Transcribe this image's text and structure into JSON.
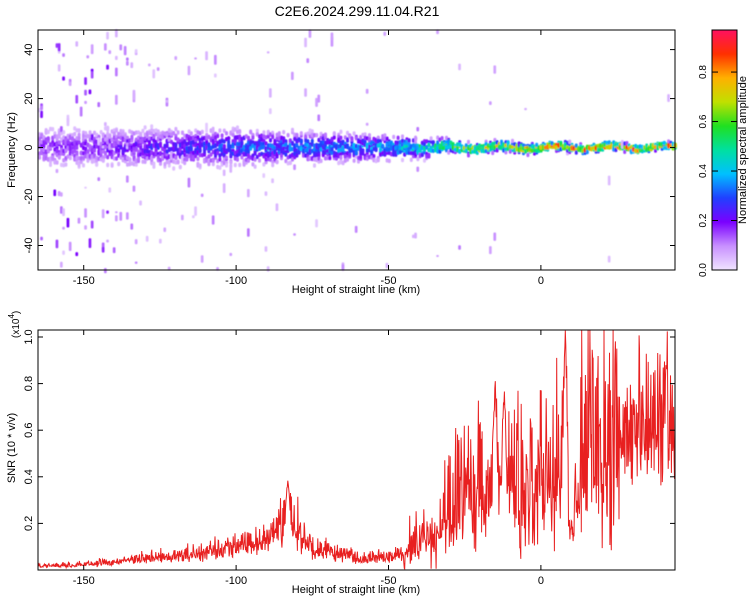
{
  "title": "C2E6.2024.299.11.04.R21",
  "chart_data": [
    {
      "type": "heatmap",
      "xlabel": "Height of straight line (km)",
      "ylabel": "Frequency (Hz)",
      "xlim": [
        -165,
        44
      ],
      "ylim": [
        -50,
        48
      ],
      "xticks": [
        -150,
        -100,
        -50,
        0
      ],
      "yticks": [
        -40,
        -20,
        0,
        20,
        40
      ],
      "colorbar": {
        "label": "Normalized spectral amplitude",
        "ticks": [
          "0.0",
          "0.2",
          "0.4",
          "0.6",
          "0.8"
        ],
        "range": [
          0,
          0.97
        ]
      },
      "energy_band": {
        "center_hz": 0,
        "half_width_hz": [
          {
            "x": -150,
            "hz": 10
          },
          {
            "x": -100,
            "hz": 9
          },
          {
            "x": -50,
            "hz": 6
          },
          {
            "x": -30,
            "hz": 3
          },
          {
            "x": 0,
            "hz": 2
          },
          {
            "x": 40,
            "hz": 1.5
          }
        ],
        "peak_amplitude": [
          {
            "x": -150,
            "v": 0.2
          },
          {
            "x": -100,
            "v": 0.35
          },
          {
            "x": -50,
            "v": 0.45
          },
          {
            "x": -30,
            "v": 0.7
          },
          {
            "x": 0,
            "v": 0.9
          },
          {
            "x": 40,
            "v": 0.95
          }
        ]
      }
    },
    {
      "type": "line",
      "xlabel": "Height of straight line (km)",
      "ylabel": "SNR (10 * v/v)",
      "multiplier_label": "(x10",
      "multiplier_exp": "4",
      "xlim": [
        -165,
        44
      ],
      "ylim": [
        0,
        1.03
      ],
      "xticks": [
        -150,
        -100,
        -50,
        0
      ],
      "yticks": [
        0.2,
        0.4,
        0.6,
        0.8,
        1.0
      ],
      "ytick_labels": [
        "0.2",
        "0.4",
        "0.6",
        "0.8",
        "1.0"
      ],
      "color": "#e82020",
      "envelope": [
        {
          "x": -165,
          "y": 0.02
        },
        {
          "x": -150,
          "y": 0.03
        },
        {
          "x": -130,
          "y": 0.06
        },
        {
          "x": -110,
          "y": 0.09
        },
        {
          "x": -90,
          "y": 0.16
        },
        {
          "x": -83,
          "y": 0.28
        },
        {
          "x": -75,
          "y": 0.12
        },
        {
          "x": -60,
          "y": 0.06
        },
        {
          "x": -45,
          "y": 0.08
        },
        {
          "x": -35,
          "y": 0.22
        },
        {
          "x": -25,
          "y": 0.38
        },
        {
          "x": -15,
          "y": 0.42
        },
        {
          "x": -5,
          "y": 0.45
        },
        {
          "x": 5,
          "y": 0.52
        },
        {
          "x": 15,
          "y": 0.62
        },
        {
          "x": 25,
          "y": 0.72
        },
        {
          "x": 35,
          "y": 0.77
        },
        {
          "x": 44,
          "y": 0.79
        }
      ],
      "spikes": [
        {
          "x": -83,
          "y": 0.39
        },
        {
          "x": -15,
          "y": 0.82
        },
        {
          "x": -12,
          "y": 0.77
        },
        {
          "x": 8,
          "y": 1.03
        }
      ]
    }
  ]
}
